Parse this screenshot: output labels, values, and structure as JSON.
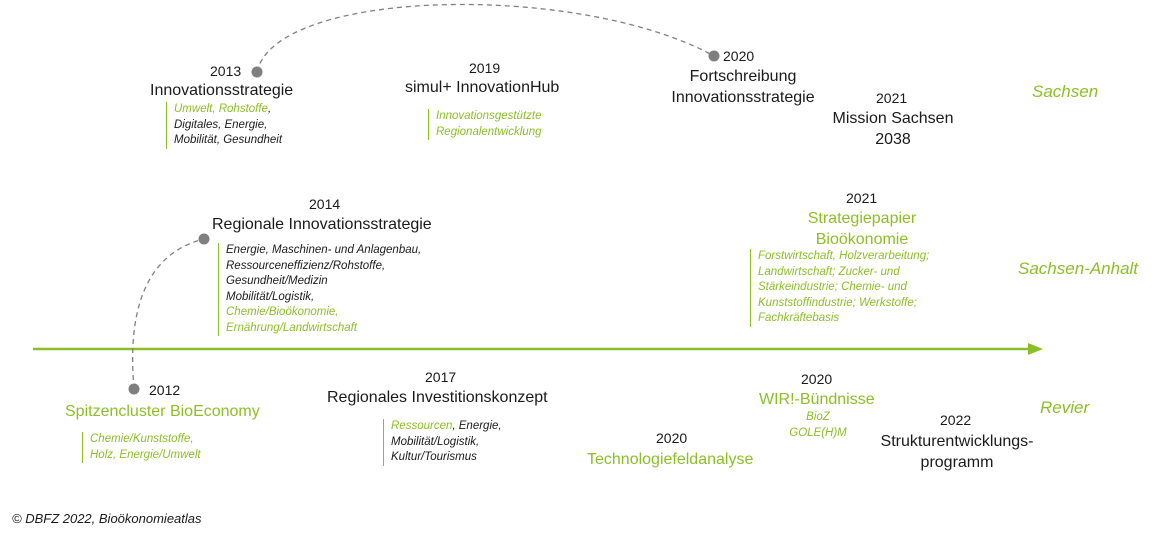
{
  "colors": {
    "accent": "#8cbf26",
    "dot": "#7f7f7f",
    "text": "#1a1a1a"
  },
  "regions": {
    "sachsen": "Sachsen",
    "sachsen_anhalt": "Sachsen-Anhalt",
    "revier": "Revier"
  },
  "sachsen": {
    "e2013": {
      "year": "2013",
      "title": "Innovationsstrategie",
      "n1a": "Umwelt, Rohstoffe",
      "n1b": ",",
      "n2": "Digitales, Energie,",
      "n3": "Mobilität, Gesundheit"
    },
    "e2019": {
      "year": "2019",
      "title": "simul+ InnovationHub",
      "n1": "Innovationsgestützte",
      "n2": "Regionalentwicklung"
    },
    "e2020": {
      "year": "2020",
      "title1": "Fortschreibung",
      "title2": "Innovationsstrategie"
    },
    "e2021": {
      "year": "2021",
      "title1": "Mission Sachsen",
      "title2": "2038"
    }
  },
  "sachsen_anhalt": {
    "e2014": {
      "year": "2014",
      "title": "Regionale Innovationsstrategie",
      "n1": "Energie, Maschinen- und Anlagenbau,",
      "n2": "Ressourceneffizienz/Rohstoffe,",
      "n3": "Gesundheit/Medizin",
      "n4": "Mobilität/Logistik,",
      "n5": "Chemie/Bioökonomie,",
      "n6": "Ernährung/Landwirtschaft"
    },
    "e2021": {
      "year": "2021",
      "title1": "Strategiepapier",
      "title2": "Bioökonomie",
      "n1": "Forstwirtschaft, Holzverarbeitung;",
      "n2": "Landwirtschaft; Zucker- und",
      "n3": "Stärkeindustrie; Chemie- und",
      "n4": "Kunststoffindustrie; Werkstoffe;",
      "n5": "Fachkräftebasis"
    }
  },
  "revier": {
    "e2012": {
      "year": "2012",
      "title": "Spitzencluster BioEconomy",
      "n1": "Chemie/Kunststoffe,",
      "n2": "Holz, Energie/Umwelt"
    },
    "e2017": {
      "year": "2017",
      "title": "Regionales Investitionskonzept",
      "n1a": "Ressourcen",
      "n1b": ", Energie,",
      "n2": "Mobilität/Logistik,",
      "n3": "Kultur/Tourismus"
    },
    "e2020a": {
      "year": "2020",
      "title": "Technologiefeldanalyse"
    },
    "e2020b": {
      "year": "2020",
      "title": "WIR!-Bündnisse",
      "n1": "BioZ",
      "n2": "GOLE(H)M"
    },
    "e2022": {
      "year": "2022",
      "title1": "Strukturentwicklungs-",
      "title2": "programm"
    }
  },
  "footer": {
    "copyright": "© DBFZ 2022, Bioökonomieatlas"
  }
}
